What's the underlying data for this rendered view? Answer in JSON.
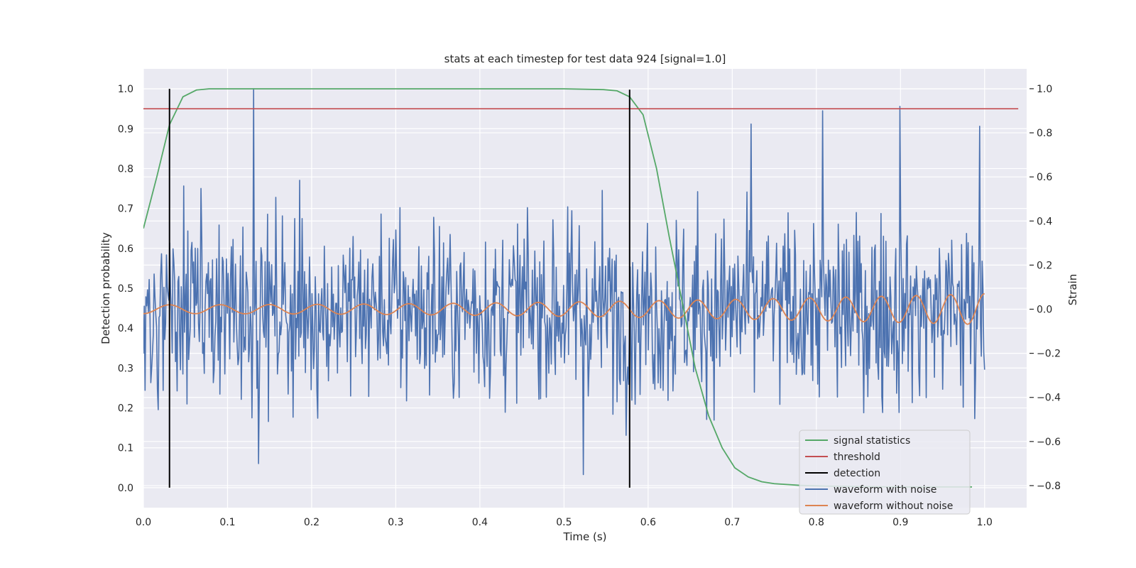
{
  "chart_data": {
    "type": "line",
    "title": "stats at each timestep for test data 924 [signal=1.0]",
    "xlabel": "Time (s)",
    "ylabel": "Detection probability",
    "y2label": "Strain",
    "xlim": [
      0.0,
      1.05
    ],
    "ylim": [
      -0.05,
      1.05
    ],
    "y2lim": [
      -0.9,
      1.09
    ],
    "xticks": [
      "0.0",
      "0.1",
      "0.2",
      "0.3",
      "0.4",
      "0.5",
      "0.6",
      "0.7",
      "0.8",
      "0.9",
      "1.0"
    ],
    "yticks": [
      "0.0",
      "0.1",
      "0.2",
      "0.3",
      "0.4",
      "0.5",
      "0.6",
      "0.7",
      "0.8",
      "0.9",
      "1.0"
    ],
    "y2ticks": [
      "−0.8",
      "−0.6",
      "−0.4",
      "−0.2",
      "0.0",
      "0.2",
      "0.4",
      "0.6",
      "0.8",
      "1.0"
    ],
    "grid": true,
    "legend_position": "bottom-right",
    "colors": {
      "signal_statistics": "#55a868",
      "threshold": "#c44e52",
      "detection": "#000000",
      "waveform_with_noise": "#4c72b0",
      "waveform_without_noise": "#dd8452",
      "plot_background": "#eaeaf2",
      "grid": "#ffffff"
    },
    "series": [
      {
        "name": "signal statistics",
        "axis": "left",
        "x": [
          0.0,
          0.016,
          0.031,
          0.047,
          0.063,
          0.078,
          0.094,
          0.11,
          0.2,
          0.3,
          0.4,
          0.5,
          0.547,
          0.563,
          0.578,
          0.594,
          0.61,
          0.625,
          0.641,
          0.656,
          0.672,
          0.688,
          0.703,
          0.719,
          0.735,
          0.75,
          0.78,
          0.81,
          0.85,
          0.9,
          0.95,
          0.985
        ],
        "y": [
          0.65,
          0.78,
          0.91,
          0.98,
          0.997,
          1.0,
          1.0,
          1.0,
          1.0,
          1.0,
          1.0,
          1.0,
          0.998,
          0.995,
          0.98,
          0.935,
          0.8,
          0.63,
          0.46,
          0.3,
          0.18,
          0.1,
          0.05,
          0.027,
          0.015,
          0.01,
          0.006,
          0.004,
          0.003,
          0.002,
          0.002,
          0.002
        ]
      },
      {
        "name": "threshold",
        "axis": "left",
        "x": [
          0.0,
          1.04
        ],
        "y": [
          0.95,
          0.95
        ]
      },
      {
        "name": "detection",
        "axis": "left",
        "segments": [
          {
            "x": 0.031,
            "y0": 0.0,
            "y1": 1.0
          },
          {
            "x": 0.578,
            "y0": 0.0,
            "y1": 0.998
          }
        ]
      },
      {
        "name": "waveform with noise",
        "axis": "right",
        "x_range": [
          0.0,
          1.0
        ],
        "points": 1024,
        "amplitude_std": 0.3,
        "peaks": [
          {
            "x": 0.131,
            "y": 1.0
          },
          {
            "x": 0.899,
            "y": 0.92
          },
          {
            "x": 0.807,
            "y": 0.9
          },
          {
            "x": 0.994,
            "y": 0.83
          },
          {
            "x": 0.722,
            "y": 0.84
          },
          {
            "x": 0.523,
            "y": -0.75
          },
          {
            "x": 0.137,
            "y": -0.7
          }
        ]
      },
      {
        "name": "waveform without noise",
        "axis": "right",
        "x_range": [
          0.0,
          1.0
        ],
        "points": 1024,
        "amplitude_start": 0.02,
        "amplitude_end": 0.07,
        "freq_start_hz": 16,
        "freq_end_hz": 25
      }
    ]
  }
}
